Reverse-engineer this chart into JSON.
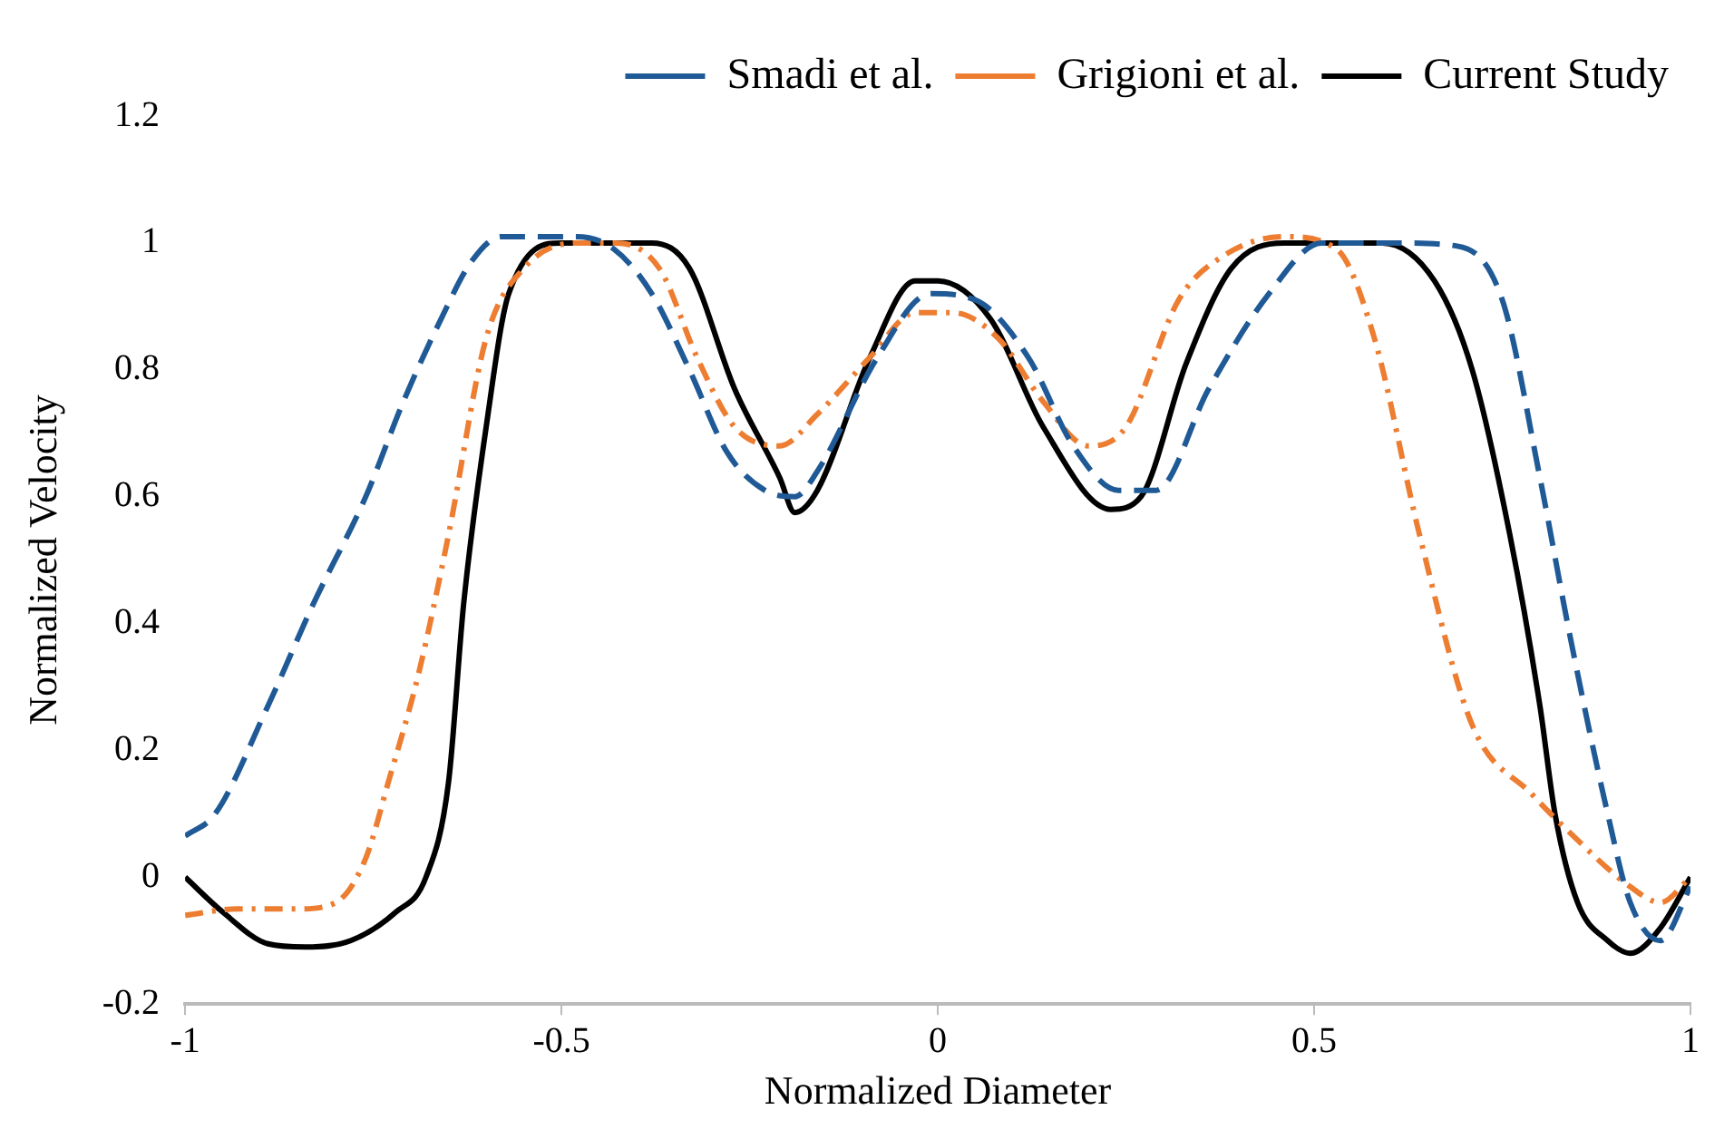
{
  "chart_data": {
    "type": "line",
    "xlabel": "Normalized Diameter",
    "ylabel": "Normalized Velocity",
    "xlim": [
      -1,
      1
    ],
    "xticks": [
      -1,
      -0.5,
      0,
      0.5,
      1
    ],
    "ylim": [
      -0.2,
      1.2
    ],
    "yticks": [
      -0.2,
      0,
      0.2,
      0.4,
      0.6,
      0.8,
      1,
      1.2
    ],
    "legend": "top right",
    "marker": "none",
    "series": [
      {
        "name": "Smadi et al.",
        "color": "#1f5a96",
        "line_style": "dashed",
        "x": [
          -1,
          -0.96,
          -0.89,
          -0.83,
          -0.76,
          -0.71,
          -0.66,
          -0.62,
          -0.58,
          -0.48,
          -0.43,
          -0.38,
          -0.33,
          -0.28,
          -0.23,
          -0.19,
          -0.16,
          -0.08,
          -0.01,
          0.05,
          0.12,
          0.18,
          0.24,
          0.29,
          0.36,
          0.44,
          0.51,
          0.61,
          0.69,
          0.75,
          0.8,
          0.84,
          0.89,
          0.92,
          0.96,
          1
        ],
        "values": [
          0.065,
          0.1,
          0.27,
          0.43,
          0.6,
          0.75,
          0.88,
          0.97,
          1.01,
          1.01,
          0.99,
          0.92,
          0.8,
          0.67,
          0.61,
          0.6,
          0.64,
          0.82,
          0.92,
          0.91,
          0.82,
          0.68,
          0.61,
          0.61,
          0.77,
          0.92,
          1,
          1,
          0.995,
          0.91,
          0.63,
          0.38,
          0.1,
          -0.04,
          -0.1,
          -0.015
        ]
      },
      {
        "name": "Grigioni et al.",
        "color": "#ed7d31",
        "line_style": "dashdot",
        "x": [
          -1,
          -0.93,
          -0.85,
          -0.8,
          -0.76,
          -0.73,
          -0.69,
          -0.65,
          -0.6,
          -0.55,
          -0.48,
          -0.43,
          -0.37,
          -0.32,
          -0.27,
          -0.21,
          -0.16,
          -0.09,
          -0.03,
          0.02,
          0.08,
          0.14,
          0.2,
          0.25,
          0.32,
          0.38,
          0.46,
          0.53,
          0.58,
          0.64,
          0.71,
          0.79,
          0.84,
          0.92,
          0.96,
          1
        ],
        "values": [
          -0.06,
          -0.05,
          -0.05,
          -0.04,
          0.03,
          0.15,
          0.32,
          0.54,
          0.85,
          0.96,
          1,
          1,
          0.96,
          0.82,
          0.71,
          0.68,
          0.73,
          0.82,
          0.89,
          0.89,
          0.85,
          0.75,
          0.68,
          0.71,
          0.91,
          0.98,
          1.01,
          0.99,
          0.85,
          0.54,
          0.24,
          0.13,
          0.07,
          -0.015,
          -0.04,
          0
        ]
      },
      {
        "name": "Current Study",
        "color": "#000000",
        "line_style": "solid",
        "x": [
          -1,
          -0.95,
          -0.89,
          -0.84,
          -0.78,
          -0.72,
          -0.68,
          -0.65,
          -0.63,
          -0.6,
          -0.57,
          -0.5,
          -0.38,
          -0.33,
          -0.27,
          -0.21,
          -0.19,
          -0.16,
          -0.09,
          -0.03,
          0,
          0.07,
          0.14,
          0.23,
          0.27,
          0.33,
          0.39,
          0.46,
          0.59,
          0.66,
          0.71,
          0.76,
          0.8,
          0.82,
          0.85,
          0.89,
          0.92,
          0.96,
          1
        ],
        "values": [
          0,
          -0.055,
          -0.105,
          -0.11,
          -0.1,
          -0.055,
          0,
          0.15,
          0.43,
          0.71,
          0.92,
          1,
          1,
          0.96,
          0.77,
          0.63,
          0.575,
          0.61,
          0.82,
          0.94,
          0.94,
          0.88,
          0.71,
          0.58,
          0.6,
          0.81,
          0.96,
          1,
          1,
          0.94,
          0.8,
          0.54,
          0.27,
          0.1,
          -0.04,
          -0.1,
          -0.12,
          -0.08,
          0
        ]
      }
    ]
  }
}
